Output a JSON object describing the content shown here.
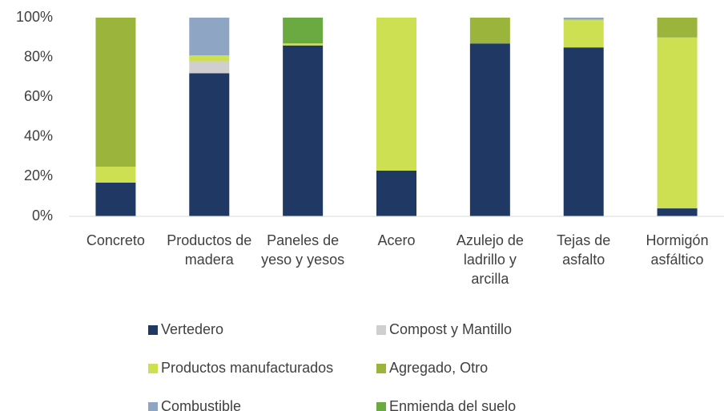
{
  "chart_data": {
    "type": "stacked_bar",
    "categories": [
      "Concreto",
      "Productos de madera",
      "Paneles de yeso y yesos",
      "Acero",
      "Azulejo de ladrillo y arcilla",
      "Tejas de asfalto",
      "Hormigón asfáltico"
    ],
    "series": [
      {
        "name": "Vertedero",
        "color": "#203864",
        "values": [
          17,
          72,
          86,
          23,
          87,
          85,
          4
        ]
      },
      {
        "name": "Compost y Mantillo",
        "color": "#d0cece",
        "values": [
          0,
          6,
          0,
          0,
          0,
          0,
          0
        ]
      },
      {
        "name": "Productos manufacturados",
        "color": "#cde052",
        "values": [
          8,
          3,
          1,
          77,
          0,
          14,
          86
        ]
      },
      {
        "name": "Agregado, Otro",
        "color": "#9bb43c",
        "values": [
          75,
          0,
          0,
          0,
          13,
          0,
          10
        ]
      },
      {
        "name": "Combustible",
        "color": "#8ea5c4",
        "values": [
          0,
          19,
          0,
          0,
          0,
          1,
          0
        ]
      },
      {
        "name": "Enmienda del suelo",
        "color": "#6aaa40",
        "values": [
          0,
          0,
          13,
          0,
          0,
          0,
          0
        ]
      }
    ],
    "ylim": [
      0,
      100
    ],
    "yticks": [
      {
        "value": 0,
        "label": "0%"
      },
      {
        "value": 20,
        "label": "20%"
      },
      {
        "value": 40,
        "label": "40%"
      },
      {
        "value": 60,
        "label": "60%"
      },
      {
        "value": 80,
        "label": "80%"
      },
      {
        "value": 100,
        "label": "100%"
      }
    ],
    "legend": "bottom"
  }
}
